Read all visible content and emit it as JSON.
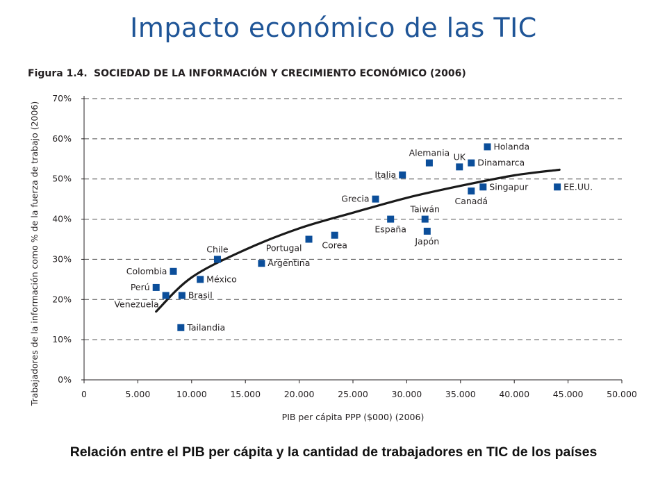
{
  "slide": {
    "title": "Impacto económico de las TIC",
    "caption": "Relación entre el PIB per cápita y la cantidad de trabajadores en TIC de los países"
  },
  "colors": {
    "title": "#1f5597",
    "marker": "#0b4e9a",
    "curve": "#1a1a1a",
    "grid": "#4d4d4d"
  },
  "chart_data": {
    "type": "scatter",
    "figure_number": "Figura 1.4.",
    "title": "SOCIEDAD DE LA INFORMACIÓN Y CRECIMIENTO ECONÓMICO (2006)",
    "xlabel": "PIB per cápita PPP ($000) (2006)",
    "ylabel": "Trabajadores de la información como % de la fuerza de trabajo (2006)",
    "xlim": [
      0,
      50000
    ],
    "ylim": [
      0,
      70
    ],
    "x_ticks": [
      0,
      5000,
      10000,
      15000,
      20000,
      25000,
      30000,
      35000,
      40000,
      45000,
      50000
    ],
    "x_tick_labels": [
      "0",
      "5.000",
      "10.000",
      "15.000",
      "20.000",
      "25.000",
      "30.000",
      "35.000",
      "40.000",
      "45.000",
      "50.000"
    ],
    "y_ticks": [
      0,
      10,
      20,
      30,
      40,
      50,
      60,
      70
    ],
    "y_tick_labels": [
      "0%",
      "10%",
      "20%",
      "30%",
      "40%",
      "50%",
      "60%",
      "70%"
    ],
    "grid": "horizontal dashed",
    "points": [
      {
        "label": "Perú",
        "x": 6700,
        "y": 23,
        "label_side": "left"
      },
      {
        "label": "Venezuela",
        "x": 7600,
        "y": 21,
        "label_side": "below-left"
      },
      {
        "label": "Colombia",
        "x": 8300,
        "y": 27,
        "label_side": "left"
      },
      {
        "label": "Brasil",
        "x": 9100,
        "y": 21,
        "label_side": "right"
      },
      {
        "label": "Tailandia",
        "x": 9000,
        "y": 13,
        "label_side": "right"
      },
      {
        "label": "México",
        "x": 10800,
        "y": 25,
        "label_side": "right"
      },
      {
        "label": "Chile",
        "x": 12400,
        "y": 30,
        "label_side": "above"
      },
      {
        "label": "Argentina",
        "x": 16500,
        "y": 29,
        "label_side": "right"
      },
      {
        "label": "Portugal",
        "x": 20900,
        "y": 35,
        "label_side": "below-left"
      },
      {
        "label": "Corea",
        "x": 23300,
        "y": 36,
        "label_side": "below"
      },
      {
        "label": "Grecia",
        "x": 27100,
        "y": 45,
        "label_side": "left"
      },
      {
        "label": "España",
        "x": 28500,
        "y": 40,
        "label_side": "below"
      },
      {
        "label": "Italia",
        "x": 29600,
        "y": 51,
        "label_side": "left"
      },
      {
        "label": "Taiwán",
        "x": 31700,
        "y": 40,
        "label_side": "above"
      },
      {
        "label": "Japón",
        "x": 31900,
        "y": 37,
        "label_side": "below"
      },
      {
        "label": "Alemania",
        "x": 32100,
        "y": 54,
        "label_side": "above"
      },
      {
        "label": "UK",
        "x": 34900,
        "y": 53,
        "label_side": "above"
      },
      {
        "label": "Canadá",
        "x": 36000,
        "y": 47,
        "label_side": "below"
      },
      {
        "label": "Dinamarca",
        "x": 36000,
        "y": 54,
        "label_side": "right"
      },
      {
        "label": "Singapur",
        "x": 37100,
        "y": 48,
        "label_side": "right"
      },
      {
        "label": "Holanda",
        "x": 37500,
        "y": 58,
        "label_side": "right"
      },
      {
        "label": "EE.UU.",
        "x": 44000,
        "y": 48,
        "label_side": "right"
      }
    ],
    "trend_curve": {
      "type": "logarithmic",
      "x": [
        6700,
        10000,
        15000,
        20000,
        25000,
        30000,
        35000,
        40000,
        44200
      ],
      "y": [
        17,
        25.5,
        32.4,
        37.7,
        41.6,
        45.3,
        48.3,
        50.9,
        52.3
      ]
    }
  }
}
